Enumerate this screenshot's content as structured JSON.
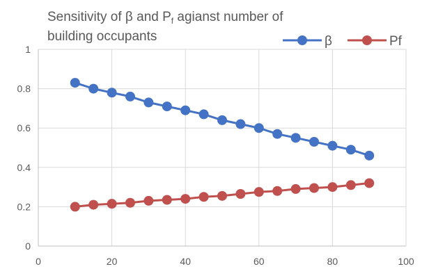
{
  "chart_data": {
    "type": "line",
    "title": {
      "line1_before": "Sensitivity of β and P",
      "line1_sub": "f",
      "line1_after": " agianst number of",
      "line2": "building occupants"
    },
    "xlabel": "",
    "ylabel": "",
    "xlim": [
      0,
      100
    ],
    "ylim": [
      0,
      1
    ],
    "xticks": [
      0,
      20,
      40,
      60,
      80,
      100
    ],
    "yticks": [
      0,
      0.2,
      0.4,
      0.6,
      0.8,
      1
    ],
    "xtick_labels": [
      "0",
      "20",
      "40",
      "60",
      "80",
      "100"
    ],
    "ytick_labels": [
      "0",
      "0.2",
      "0.4",
      "0.6",
      "0.8",
      "1"
    ],
    "grid": true,
    "legend_position": "top-right",
    "x": [
      10,
      15,
      20,
      25,
      30,
      35,
      40,
      45,
      50,
      55,
      60,
      65,
      70,
      75,
      80,
      85,
      90
    ],
    "series": [
      {
        "name": "β",
        "color": "#4472c4",
        "values": [
          0.83,
          0.8,
          0.78,
          0.76,
          0.73,
          0.71,
          0.69,
          0.67,
          0.64,
          0.62,
          0.6,
          0.57,
          0.55,
          0.53,
          0.51,
          0.49,
          0.46
        ]
      },
      {
        "name": "Pf",
        "color": "#c0504d",
        "values": [
          0.2,
          0.21,
          0.215,
          0.22,
          0.23,
          0.235,
          0.24,
          0.25,
          0.255,
          0.265,
          0.275,
          0.28,
          0.29,
          0.295,
          0.3,
          0.31,
          0.32
        ]
      }
    ]
  }
}
